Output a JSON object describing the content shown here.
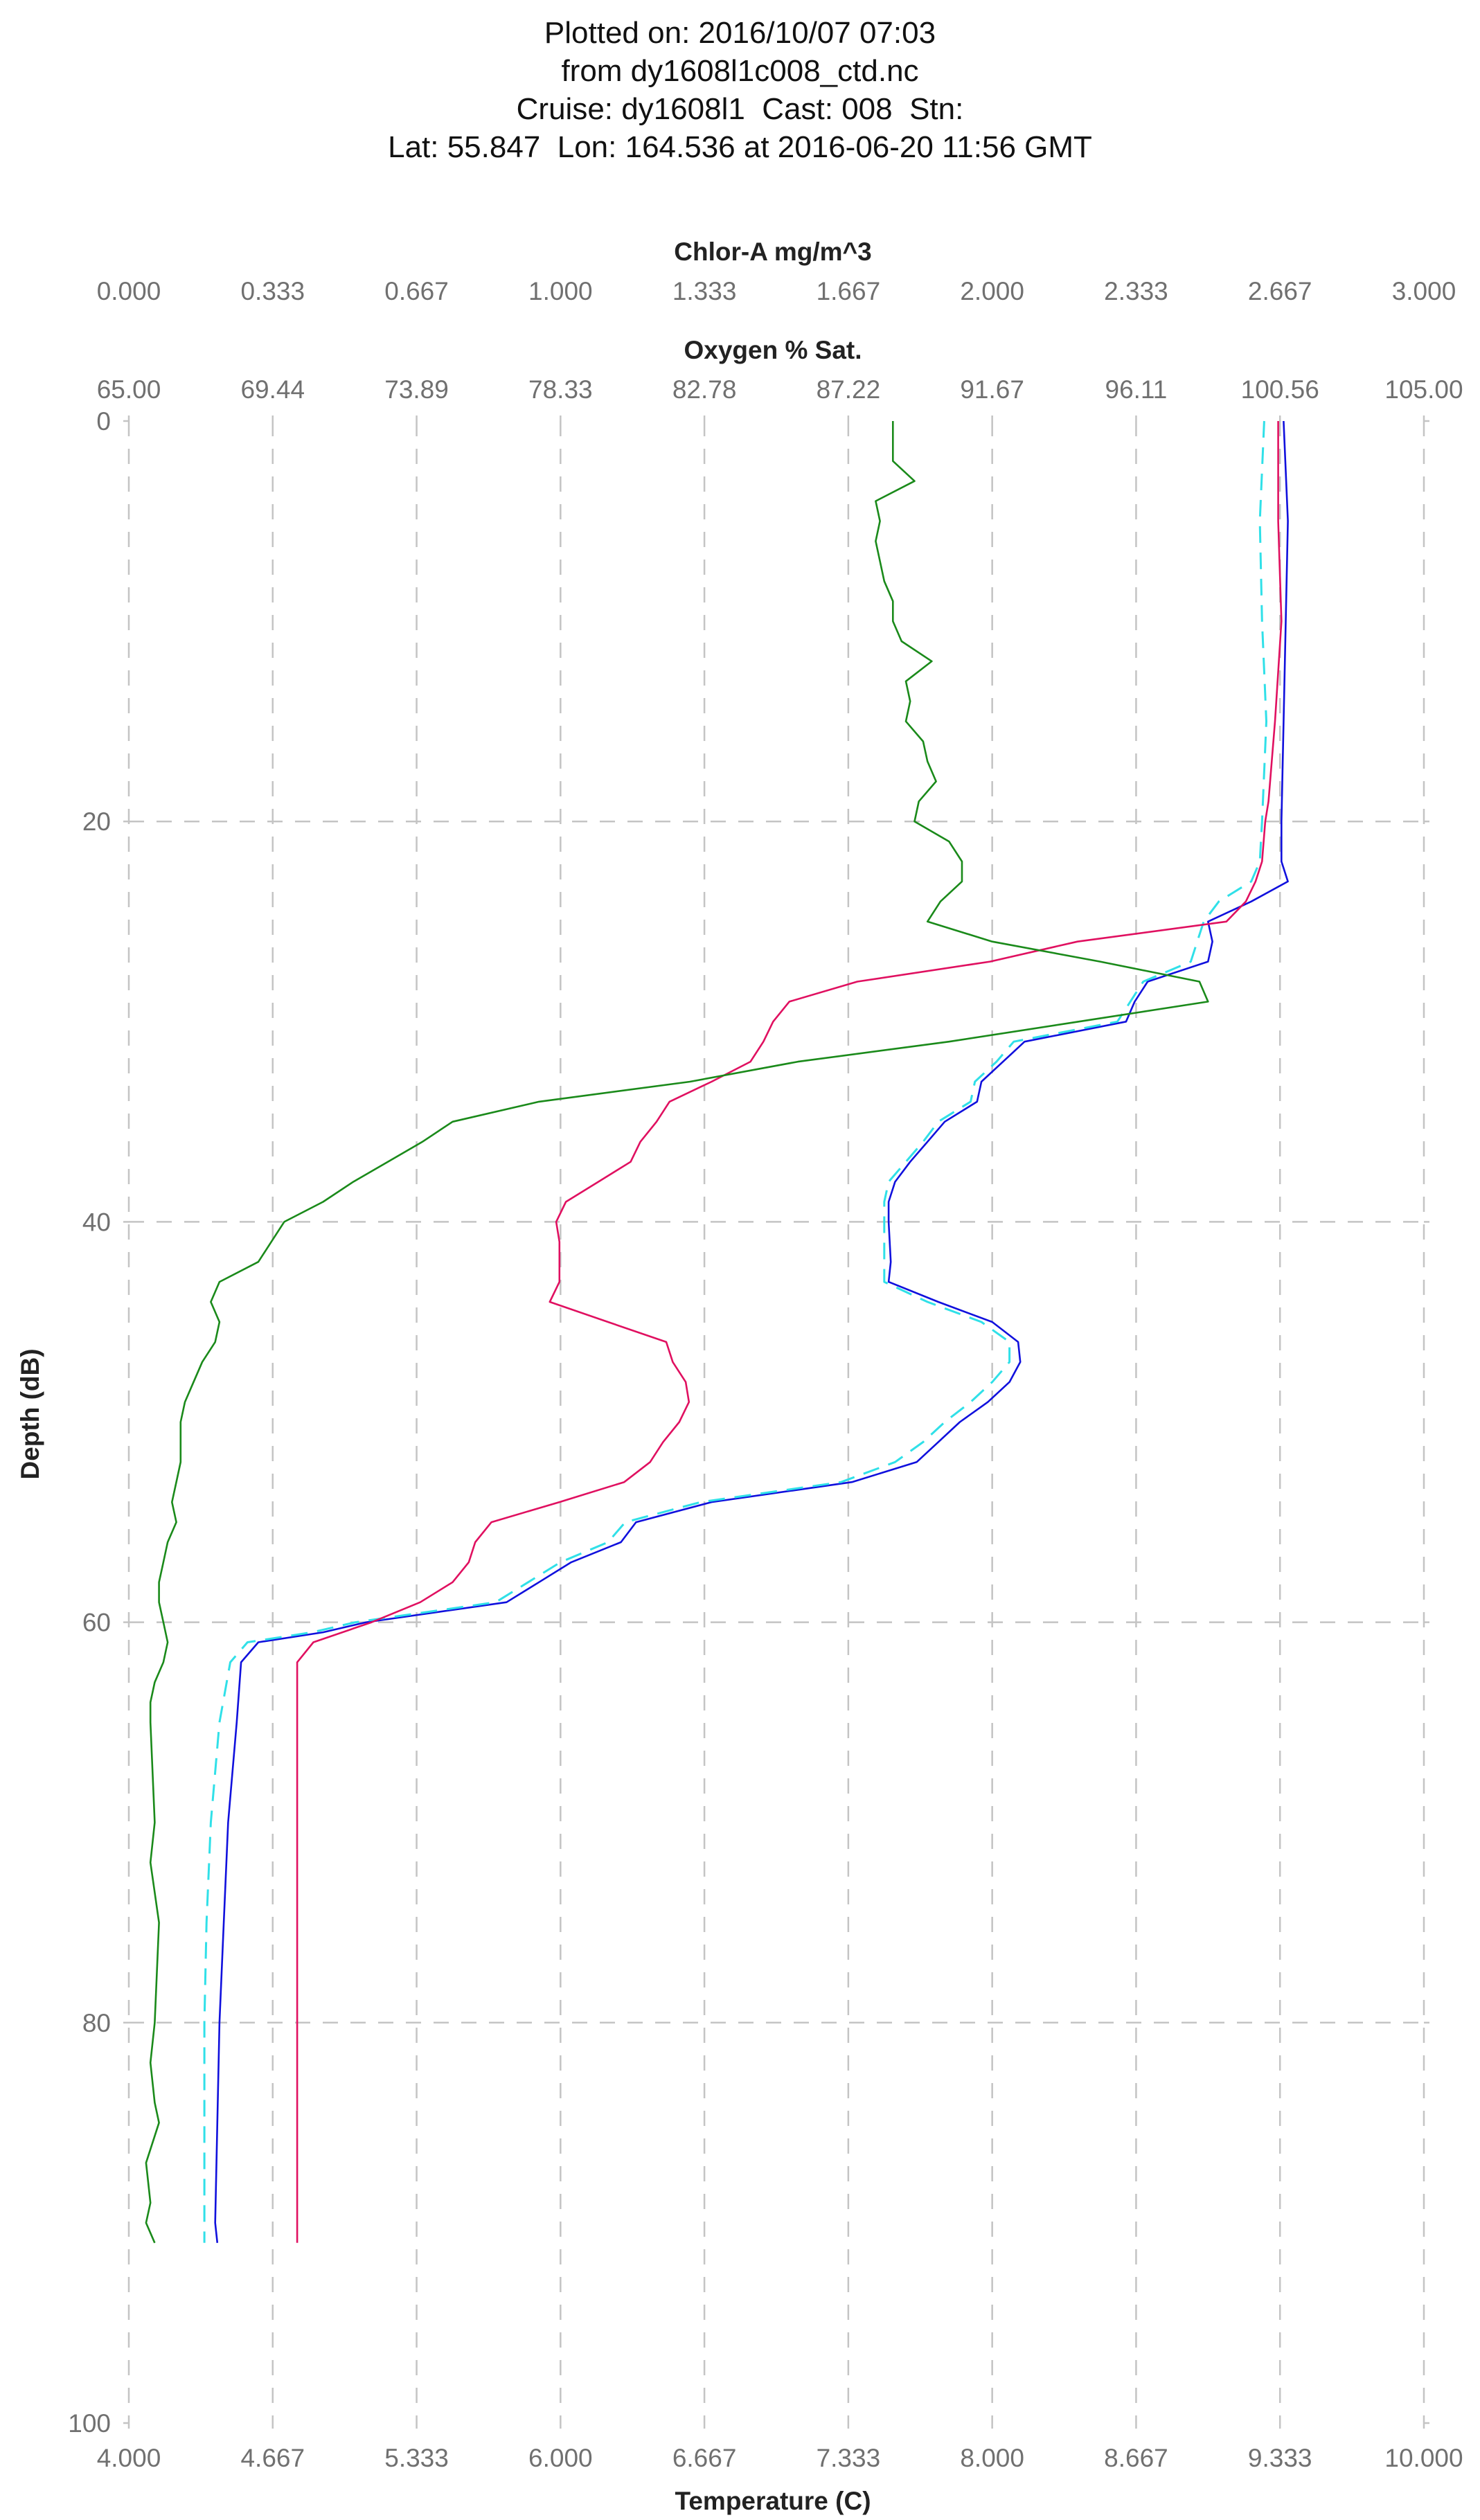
{
  "title_lines": [
    "Plotted on: 2016/10/07 07:03",
    "from dy1608l1c008_ctd.nc",
    "Cruise: dy1608l1  Cast: 008  Stn:",
    "Lat: 55.847  Lon: 164.536 at 2016-06-20 11:56 GMT"
  ],
  "chart_data": {
    "type": "line",
    "ylabel": "Depth (dB)",
    "ylim": [
      0,
      100
    ],
    "y_inverted": true,
    "y_ticks": [
      "0",
      "20",
      "40",
      "60",
      "80",
      "100"
    ],
    "grid": true,
    "axes": {
      "temperature": {
        "label": "Temperature (C)",
        "range": [
          4.0,
          10.0
        ],
        "ticks": [
          "4.000",
          "4.667",
          "5.333",
          "6.000",
          "6.667",
          "7.333",
          "8.000",
          "8.667",
          "9.333",
          "10.000"
        ]
      },
      "oxygen": {
        "label": "Oxygen % Sat.",
        "range": [
          65.0,
          105.0
        ],
        "ticks": [
          "65.00",
          "69.44",
          "73.89",
          "78.33",
          "82.78",
          "87.22",
          "91.67",
          "96.11",
          "100.56",
          "105.00"
        ]
      },
      "chlorophyll": {
        "label": "Chlor-A mg/m^3",
        "range": [
          0.0,
          3.0
        ],
        "ticks": [
          "0.000",
          "0.333",
          "0.667",
          "1.000",
          "1.333",
          "1.667",
          "2.000",
          "2.333",
          "2.667",
          "3.000"
        ]
      }
    },
    "series": [
      {
        "axis": "temperature",
        "color": "#1010dd",
        "dash": "none",
        "depth": [
          0,
          5,
          10,
          15,
          20,
          22,
          23,
          24,
          25,
          26,
          27,
          28,
          29,
          30,
          31,
          32,
          33,
          34,
          35,
          36,
          37,
          38,
          39,
          40,
          42,
          43,
          44,
          45,
          46,
          47,
          48,
          49,
          50,
          51,
          52,
          53,
          54,
          55,
          56,
          57,
          58,
          59,
          60,
          60.5,
          61,
          62,
          65,
          70,
          75,
          80,
          85,
          90,
          91
        ],
        "values": [
          9.35,
          9.37,
          9.36,
          9.35,
          9.34,
          9.34,
          9.37,
          9.2,
          9.0,
          9.02,
          9.0,
          8.72,
          8.66,
          8.62,
          8.15,
          8.05,
          7.95,
          7.93,
          7.78,
          7.7,
          7.62,
          7.55,
          7.52,
          7.52,
          7.53,
          7.52,
          7.75,
          8.0,
          8.12,
          8.13,
          8.08,
          7.98,
          7.85,
          7.75,
          7.65,
          7.35,
          6.7,
          6.35,
          6.28,
          6.05,
          5.9,
          5.75,
          5.1,
          4.9,
          4.6,
          4.52,
          4.5,
          4.46,
          4.44,
          4.42,
          4.41,
          4.4,
          4.41
        ]
      },
      {
        "axis": "temperature",
        "color": "#30e0e8",
        "dash": "dash",
        "depth": [
          0,
          5,
          10,
          15,
          20,
          22,
          23,
          24,
          25,
          26,
          27,
          28,
          29,
          30,
          31,
          32,
          33,
          34,
          35,
          36,
          37,
          38,
          39,
          40,
          42,
          43,
          44,
          45,
          46,
          47,
          48,
          49,
          50,
          51,
          52,
          53,
          54,
          55,
          56,
          57,
          58,
          59,
          60,
          60.5,
          61,
          62,
          65,
          70,
          75,
          80,
          85,
          90,
          91
        ],
        "values": [
          9.26,
          9.24,
          9.25,
          9.27,
          9.25,
          9.24,
          9.2,
          9.05,
          8.98,
          8.95,
          8.92,
          8.7,
          8.64,
          8.58,
          8.1,
          8.02,
          7.92,
          7.9,
          7.75,
          7.68,
          7.6,
          7.52,
          7.5,
          7.5,
          7.5,
          7.5,
          7.7,
          7.95,
          8.08,
          8.08,
          8.0,
          7.9,
          7.78,
          7.68,
          7.55,
          7.3,
          6.65,
          6.3,
          6.22,
          6.0,
          5.85,
          5.7,
          5.05,
          4.85,
          4.55,
          4.47,
          4.42,
          4.38,
          4.36,
          4.35,
          4.35,
          4.35,
          4.35
        ]
      },
      {
        "axis": "oxygen",
        "color": "#e01060",
        "dash": "none",
        "depth": [
          0,
          5,
          10,
          15,
          19,
          20,
          22,
          23,
          24,
          25,
          26,
          27,
          28,
          29,
          30,
          31,
          32,
          33,
          34,
          35,
          36,
          37,
          38,
          39,
          40,
          41,
          42,
          43,
          44,
          45,
          46,
          47,
          48,
          49,
          50,
          51,
          52,
          53,
          54,
          55,
          56,
          57,
          58,
          59,
          60,
          61,
          62,
          63,
          70,
          80,
          91
        ],
        "values": [
          100.5,
          100.5,
          100.6,
          100.4,
          100.2,
          100.1,
          100.0,
          99.8,
          99.5,
          98.9,
          94.3,
          91.6,
          87.5,
          85.4,
          84.9,
          84.6,
          84.2,
          83.0,
          81.7,
          81.3,
          80.8,
          80.5,
          79.5,
          78.5,
          78.2,
          78.3,
          78.3,
          78.3,
          78.0,
          79.8,
          81.6,
          81.8,
          82.2,
          82.3,
          82.0,
          81.5,
          81.1,
          80.3,
          78.3,
          76.2,
          75.7,
          75.5,
          75.0,
          74.0,
          72.5,
          70.7,
          70.2,
          70.2,
          70.2,
          70.2,
          70.2
        ]
      },
      {
        "axis": "chlorophyll",
        "color": "#1a8a1a",
        "dash": "none",
        "depth": [
          0,
          1,
          2,
          3,
          4,
          5,
          6,
          7,
          8,
          9,
          10,
          11,
          12,
          13,
          14,
          15,
          16,
          17,
          18,
          19,
          20,
          21,
          22,
          23,
          24,
          25,
          26,
          27,
          28,
          29,
          30,
          31,
          32,
          33,
          34,
          35,
          36,
          37,
          38,
          39,
          40,
          41,
          42,
          43,
          44,
          45,
          46,
          47,
          48,
          49,
          50,
          51,
          52,
          53,
          54,
          55,
          56,
          57,
          58,
          59,
          60,
          61,
          62,
          63,
          64,
          65,
          70,
          72,
          75,
          80,
          82,
          84,
          85,
          87,
          89,
          90,
          91
        ],
        "values": [
          1.77,
          1.77,
          1.77,
          1.82,
          1.73,
          1.74,
          1.73,
          1.74,
          1.75,
          1.77,
          1.77,
          1.79,
          1.86,
          1.8,
          1.81,
          1.8,
          1.84,
          1.85,
          1.87,
          1.83,
          1.82,
          1.9,
          1.93,
          1.93,
          1.88,
          1.85,
          2.0,
          2.25,
          2.48,
          2.5,
          2.2,
          1.9,
          1.55,
          1.3,
          0.95,
          0.75,
          0.68,
          0.6,
          0.52,
          0.45,
          0.36,
          0.33,
          0.3,
          0.21,
          0.19,
          0.21,
          0.2,
          0.17,
          0.15,
          0.13,
          0.12,
          0.12,
          0.12,
          0.11,
          0.1,
          0.11,
          0.09,
          0.08,
          0.07,
          0.07,
          0.08,
          0.09,
          0.08,
          0.06,
          0.05,
          0.05,
          0.06,
          0.05,
          0.07,
          0.06,
          0.05,
          0.06,
          0.07,
          0.04,
          0.05,
          0.04,
          0.06
        ]
      }
    ]
  }
}
